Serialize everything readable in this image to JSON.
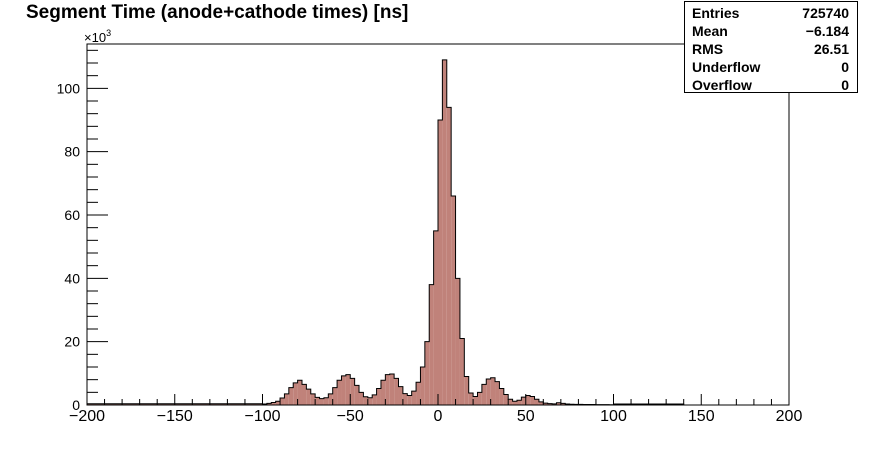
{
  "chart_data": {
    "type": "bar",
    "title": "Segment Time (anode+cathode times) [ns]",
    "x_tick_labels": [
      "−200",
      "−150",
      "−100",
      "−50",
      "0",
      "50",
      "100",
      "150",
      "200"
    ],
    "y_tick_labels": [
      "0",
      "20",
      "40",
      "60",
      "80",
      "100"
    ],
    "y_multiplier": "×10",
    "y_multiplier_exp": "3",
    "xlim": [
      -200,
      200
    ],
    "ylim": [
      0,
      114000
    ],
    "bin_width": 2.5,
    "bins_x_low": [
      -100,
      -97.5,
      -95,
      -92.5,
      -90,
      -87.5,
      -85,
      -82.5,
      -80,
      -77.5,
      -75,
      -72.5,
      -70,
      -67.5,
      -65,
      -62.5,
      -60,
      -57.5,
      -55,
      -52.5,
      -50,
      -47.5,
      -45,
      -42.5,
      -40,
      -37.5,
      -35,
      -32.5,
      -30,
      -27.5,
      -25,
      -22.5,
      -20,
      -17.5,
      -15,
      -12.5,
      -10,
      -7.5,
      -5,
      -2.5,
      0,
      2.5,
      5,
      7.5,
      10,
      12.5,
      15,
      17.5,
      20,
      22.5,
      25,
      27.5,
      30,
      32.5,
      35,
      37.5,
      40,
      42.5,
      45,
      47.5,
      50,
      52.5,
      55,
      57.5,
      60,
      62.5,
      65,
      67.5,
      70,
      72.5,
      75,
      77.5,
      80,
      82.5,
      85,
      87.5,
      90,
      92.5,
      95,
      97.5
    ],
    "values": [
      300,
      500,
      800,
      1200,
      2200,
      3500,
      5500,
      7000,
      7800,
      6500,
      5000,
      3500,
      2400,
      2000,
      2300,
      3500,
      5500,
      7800,
      9200,
      9600,
      8400,
      6200,
      4000,
      2600,
      2300,
      3200,
      5200,
      7800,
      9600,
      9800,
      8400,
      5800,
      3600,
      3000,
      4400,
      7200,
      12000,
      20000,
      38000,
      55000,
      90000,
      109000,
      94000,
      66000,
      40000,
      21000,
      9000,
      3800,
      2700,
      4000,
      6500,
      8200,
      8600,
      7400,
      5200,
      3300,
      1800,
      1200,
      1500,
      2500,
      3000,
      2700,
      1800,
      1000,
      600,
      450,
      350,
      700,
      500,
      300,
      250,
      200,
      180,
      150,
      150,
      140,
      120,
      110,
      100,
      90
    ],
    "baseline_left": 400,
    "baseline_right": 300,
    "fill_color": "#c0827a",
    "line_color": "#000000",
    "stats": [
      {
        "label": "Entries",
        "value": "725740"
      },
      {
        "label": "Mean",
        "value": "−6.184"
      },
      {
        "label": "RMS",
        "value": "26.51"
      },
      {
        "label": "Underflow",
        "value": "0"
      },
      {
        "label": "Overflow",
        "value": "0"
      }
    ]
  }
}
